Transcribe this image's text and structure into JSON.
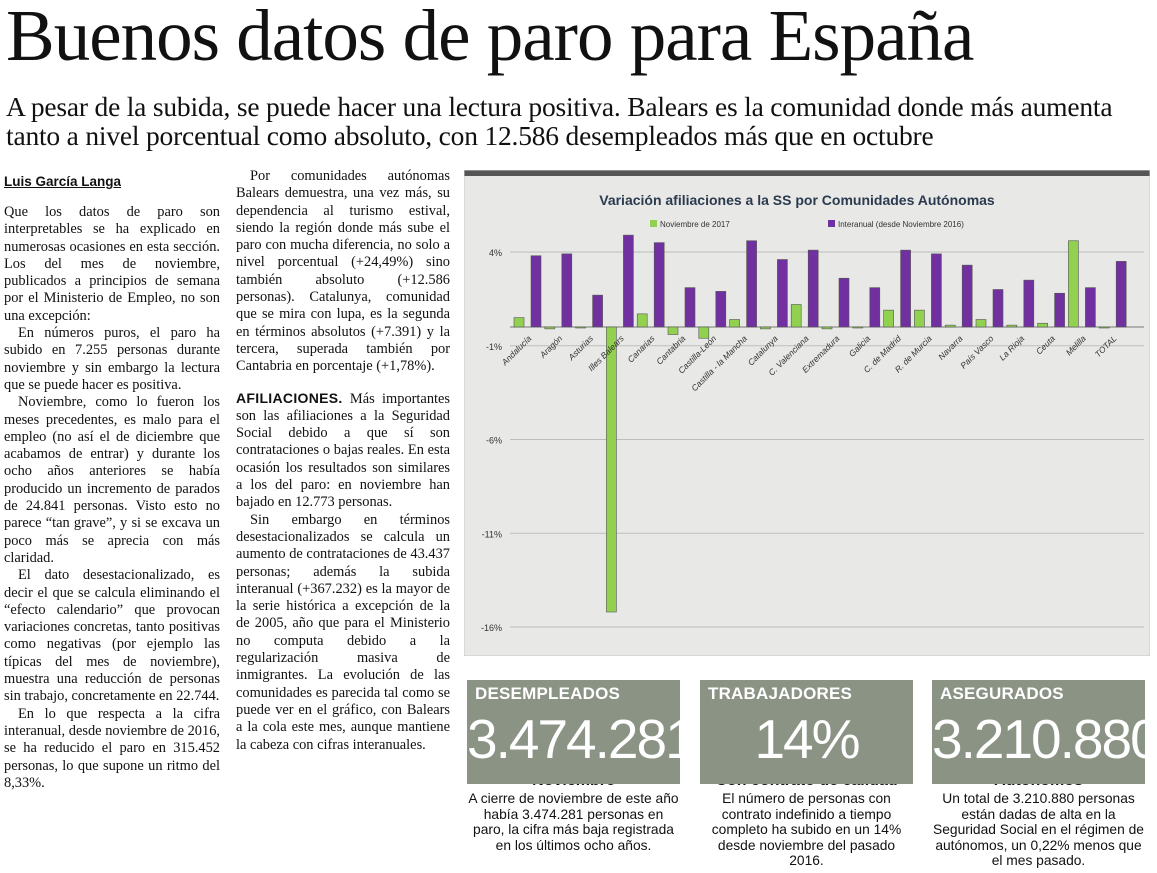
{
  "headline": "Buenos datos de paro para España",
  "subhead": "A pesar de la subida, se puede hacer una lectura positiva. Balears es la comunidad donde más aumenta tanto a nivel porcentual como absoluto, con 12.586 desempleados más que en octubre",
  "byline": "Luis García Langa",
  "col1": [
    "Que los datos de paro son interpretables se ha explicado en numerosas ocasiones en esta sección. Los del mes de noviembre, publicados a principios de semana por el Ministerio de Empleo, no son una excepción:",
    "En números puros, el paro ha subido en 7.255 personas durante noviembre y sin embargo la lectura que se puede hacer es positiva.",
    "Noviembre, como lo fueron los meses precedentes, es malo para el empleo (no así el de diciembre que acabamos de entrar) y durante los ocho años anteriores se había producido un incremento de parados de 24.841 personas. Visto esto no parece “tan grave”, y si se excava un poco más se aprecia con más claridad.",
    "El dato desestacionalizado, es decir el que se calcula eliminando el “efecto calendario” que provocan variaciones concretas, tanto positivas como negativas (por ejemplo las típicas del mes de noviembre), muestra una reducción de personas sin trabajo, concretamente en 22.744.",
    "En lo que respecta a la cifra interanual, desde noviembre de 2016, se ha reducido el paro en 315.452 personas, lo que supone un ritmo del 8,33%."
  ],
  "col2": {
    "p1": "Por comunidades autónomas Balears demuestra, una vez más, su dependencia al turismo estival, siendo la región donde más sube el paro con mucha diferencia, no solo a nivel porcentual (+24,49%) sino también absoluto (+12.586 personas). Catalunya, comunidad que se mira con lupa, es la segunda en términos absolutos (+7.391) y la tercera, superada también por Cantabria en porcentaje (+1,78%).",
    "afil_label": "AFILIACIONES.",
    "afil_text": " Más importantes son las afiliaciones a la Seguridad Social debido a que sí son contrataciones o bajas reales. En esta ocasión los resultados son similares a los del paro: en noviembre han bajado en 12.773 personas.",
    "p3": "Sin embargo en términos desestacionalizados se calcula un aumento de contrataciones de 43.437 personas; además la subida interanual (+367.232) es la mayor de la serie histórica a excepción de la de 2005, año que para el Ministerio no computa debido a la regularización masiva de inmigrantes. La evolución de las comunidades es parecida tal como se puede ver en el gráfico, con Balears a la cola este mes, aunque mantiene la cabeza con cifras interanuales."
  },
  "chart_data": {
    "type": "bar",
    "title": "Variación afiliaciones a la SS por Comunidades Autónomas",
    "categories": [
      "Andalucía",
      "Aragón",
      "Asturias",
      "Illes Balears",
      "Canarias",
      "Cantabria",
      "Castilla-León",
      "Castilla - la Mancha",
      "Catalunya",
      "C. Valenciana",
      "Extremadura",
      "Galicia",
      "C. de Madrid",
      "R. de Murcia",
      "Navarra",
      "País Vasco",
      "La Rioja",
      "Ceuta",
      "Melilla",
      "TOTAL"
    ],
    "series": [
      {
        "name": "Noviembre de 2017",
        "color": "#92d050",
        "values": [
          0.5,
          -0.1,
          -0.05,
          -15.2,
          0.7,
          -0.4,
          -0.6,
          0.4,
          -0.1,
          1.2,
          -0.1,
          -0.05,
          0.9,
          0.9,
          0.1,
          0.4,
          0.1,
          0.2,
          4.6,
          -0.05
        ]
      },
      {
        "name": "Interanual (desde Noviembre 2016)",
        "color": "#7030a0",
        "values": [
          3.8,
          3.9,
          1.7,
          4.9,
          4.5,
          2.1,
          1.9,
          4.6,
          3.6,
          4.1,
          2.6,
          2.1,
          4.1,
          3.9,
          3.3,
          2.0,
          2.5,
          1.8,
          2.1,
          3.5
        ]
      }
    ],
    "yticks": [
      "4%",
      "-1%",
      "-6%",
      "-11%",
      "-16%"
    ],
    "ylim": [
      -16,
      5
    ],
    "legend": "top"
  },
  "stats": [
    {
      "label": "DESEMPLEADOS",
      "value": "3.474.281",
      "title": "Noviembre",
      "desc": "A cierre de noviembre de este año había 3.474.281 personas en paro, la cifra más baja registrada en los últimos ocho años."
    },
    {
      "label": "TRABAJADORES",
      "value": "14%",
      "title": "Con contrato de calidad",
      "desc": "El número de personas con contrato indefinido a tiempo completo ha subido en un 14% desde noviembre del pasado 2016."
    },
    {
      "label": "ASEGURADOS",
      "value": "3.210.880",
      "title": "Autónomos",
      "desc": "Un total de 3.210.880 personas están dadas de alta en la Seguridad Social en el régimen de autónomos, un 0,22% menos que el mes pasado."
    }
  ]
}
